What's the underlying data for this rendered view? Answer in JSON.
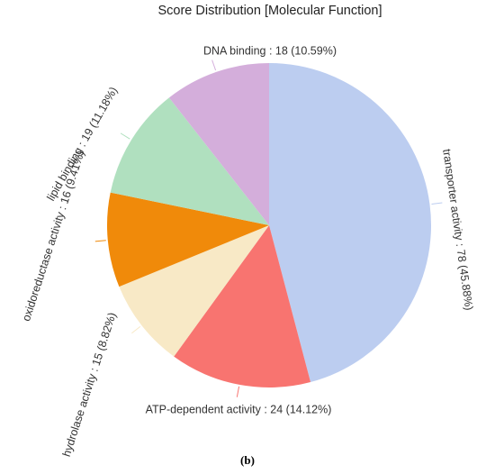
{
  "chart_data": {
    "type": "pie",
    "title": "Score Distribution [Molecular Function]",
    "labels": [
      "transporter activity : 78 (45.88%)",
      "ATP-dependent activity : 24 (14.12%)",
      "hydrolase activity : 15 (8.82%)",
      "oxidoreductase activity : 16 (9.41%)",
      "lipid binding : 19 (11.18%)",
      "DNA binding : 18 (10.59%)"
    ],
    "values": [
      78,
      24,
      15,
      16,
      19,
      18
    ],
    "colors": [
      "#bccdf0",
      "#f87470",
      "#f8e9c6",
      "#f08a0a",
      "#b0e0bf",
      "#d4aedb"
    ],
    "caption": "(b)"
  }
}
